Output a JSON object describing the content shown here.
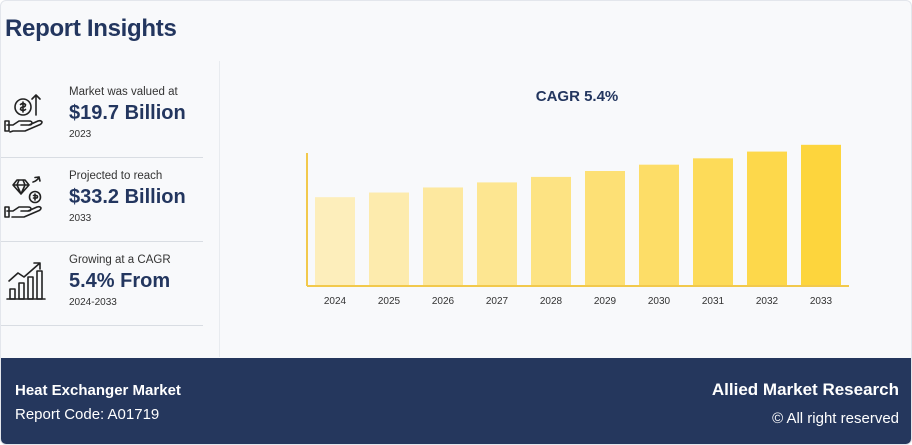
{
  "header": {
    "title": "Report Insights"
  },
  "stats": [
    {
      "label": "Market was valued at",
      "value": "$19.7 Billion",
      "sub": "2023"
    },
    {
      "label": "Projected to reach",
      "value": "$33.2 Billion",
      "sub": "2033"
    },
    {
      "label": "Growing at a CAGR",
      "value": "5.4% From",
      "sub": "2024-2033"
    }
  ],
  "icons": [
    "money-hand-icon",
    "diamond-coin-hand-icon",
    "growth-chart-icon"
  ],
  "colors": {
    "navy": "#25375d",
    "title_navy": "#23365f",
    "bar_light": "#fdeebb",
    "bar_dark": "#fdd53d",
    "axis": "#f2c94c"
  },
  "chart_data": {
    "type": "bar",
    "title": "CAGR 5.4%",
    "xlabel": "",
    "ylabel": "",
    "categories": [
      "2024",
      "2025",
      "2026",
      "2027",
      "2028",
      "2029",
      "2030",
      "2031",
      "2032",
      "2033"
    ],
    "values": [
      20.8,
      21.9,
      23.1,
      24.3,
      25.6,
      27.0,
      28.5,
      30.0,
      31.6,
      33.2
    ],
    "ylim": [
      0,
      36
    ],
    "grid": false,
    "legend": "none"
  },
  "footer": {
    "market_name": "Heat Exchanger Market",
    "report_code": "Report Code: A01719",
    "brand": "Allied Market Research",
    "rights": "© All right reserved"
  }
}
